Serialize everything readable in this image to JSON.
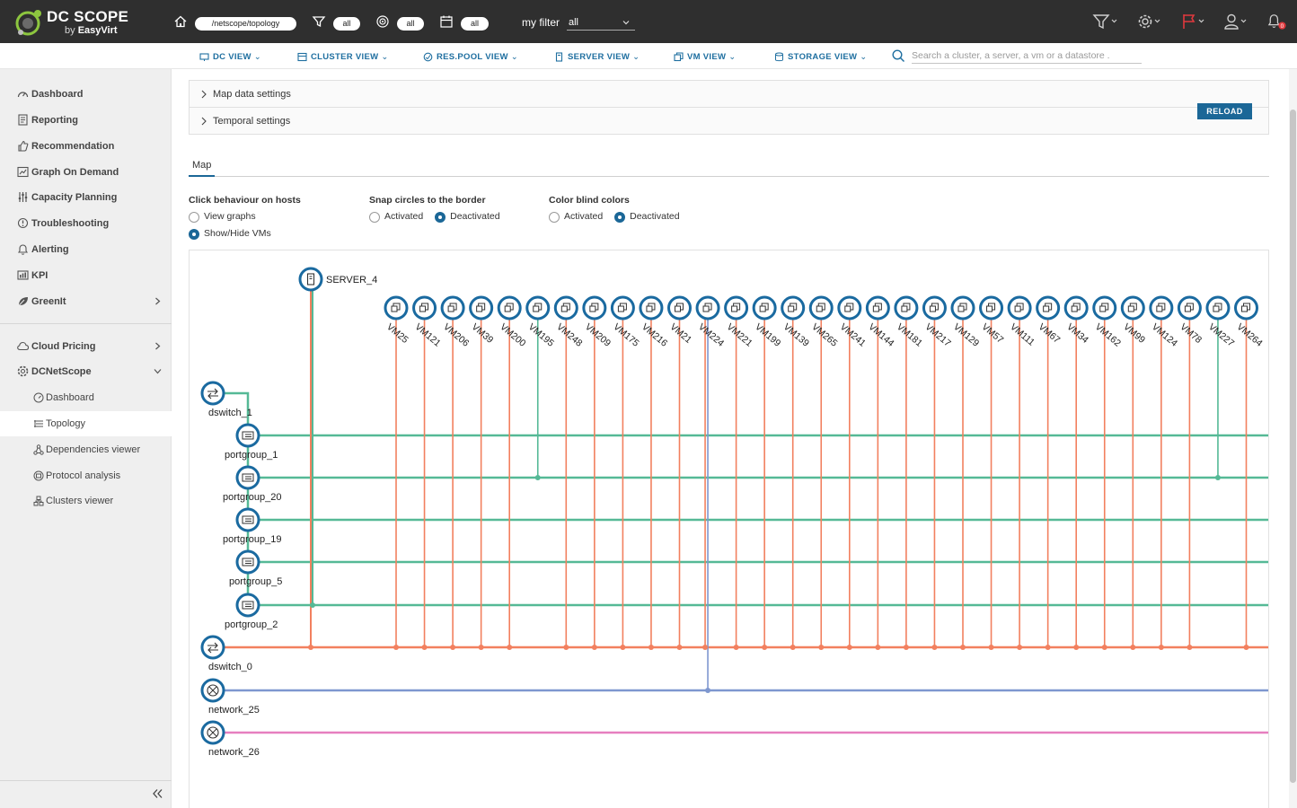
{
  "app": {
    "logo_text": "DC SCOPE",
    "logo_sub_prefix": "by",
    "logo_sub_brand": "EasyVirt"
  },
  "topbar": {
    "breadcrumb": "/netscope/topology",
    "filter_pill": "all",
    "cluster_pill": "all",
    "date_pill": "all",
    "my_filter_label": "my filter",
    "my_filter_value": "all",
    "notification_count": "0",
    "colors": {
      "bg": "#2f2f2f",
      "flag": "#e0393e",
      "badge": "#e0393e"
    }
  },
  "subnav": {
    "items": [
      {
        "label": "DC VIEW",
        "icon": "datacenter-icon"
      },
      {
        "label": "CLUSTER VIEW",
        "icon": "cluster-icon"
      },
      {
        "label": "RES.POOL VIEW",
        "icon": "resource-pool-icon"
      },
      {
        "label": "SERVER VIEW",
        "icon": "server-icon"
      },
      {
        "label": "VM VIEW",
        "icon": "vm-icon"
      },
      {
        "label": "STORAGE VIEW",
        "icon": "storage-icon"
      }
    ],
    "search_placeholder": "Search a cluster, a server, a vm or a datastore ."
  },
  "sidebar": {
    "items": [
      {
        "label": "Dashboard",
        "icon": "dashboard-icon"
      },
      {
        "label": "Reporting",
        "icon": "reporting-icon"
      },
      {
        "label": "Recommendation",
        "icon": "recommendation-icon"
      },
      {
        "label": "Graph On Demand",
        "icon": "graph-icon"
      },
      {
        "label": "Capacity Planning",
        "icon": "capacity-icon"
      },
      {
        "label": "Troubleshooting",
        "icon": "troubleshooting-icon"
      },
      {
        "label": "Alerting",
        "icon": "bell-icon"
      },
      {
        "label": "KPI",
        "icon": "kpi-icon"
      },
      {
        "label": "GreenIt",
        "icon": "leaf-icon"
      }
    ],
    "cloud_pricing": "Cloud Pricing",
    "dcnetscope": "DCNetScope",
    "subitems": [
      {
        "label": "Dashboard",
        "icon": "dashboard-icon"
      },
      {
        "label": "Topology",
        "icon": "topology-icon",
        "active": true
      },
      {
        "label": "Dependencies viewer",
        "icon": "dependencies-icon"
      },
      {
        "label": "Protocol analysis",
        "icon": "protocol-icon"
      },
      {
        "label": "Clusters viewer",
        "icon": "clusters-icon"
      }
    ]
  },
  "main": {
    "accordion": {
      "map_data_settings": "Map data settings",
      "temporal_settings": "Temporal settings",
      "reload_label": "RELOAD"
    },
    "tab_map": "Map",
    "options": {
      "click_behaviour": {
        "title": "Click behaviour on hosts",
        "opt1": "View graphs",
        "opt2": "Show/Hide VMs",
        "selected": "Show/Hide VMs"
      },
      "snap_circles": {
        "title": "Snap circles to the border",
        "opt1": "Activated",
        "opt2": "Deactivated",
        "selected": "Deactivated"
      },
      "color_blind": {
        "title": "Color blind colors",
        "opt1": "Activated",
        "opt2": "Deactivated",
        "selected": "Deactivated"
      }
    }
  },
  "topology": {
    "colors": {
      "node_ring": "#1a6aa0",
      "portgroup_line": "#55b996",
      "dswitch0_line": "#f2805f",
      "network25_line": "#7e97cf",
      "network26_line": "#e67fbf"
    },
    "server": "SERVER_4",
    "vms": [
      "VM25",
      "VM121",
      "VM206",
      "VM39",
      "VM200",
      "VM195",
      "VM248",
      "VM209",
      "VM175",
      "VM216",
      "VM21",
      "VM224",
      "VM221",
      "VM199",
      "VM139",
      "VM265",
      "VM241",
      "VM144",
      "VM181",
      "VM217",
      "VM129",
      "VM57",
      "VM111",
      "VM67",
      "VM34",
      "VM162",
      "VM99",
      "VM124",
      "VM78",
      "VM227",
      "VM264"
    ],
    "left_nodes": [
      {
        "label": "dswitch_1",
        "type": "switch"
      },
      {
        "label": "portgroup_1",
        "type": "portgroup"
      },
      {
        "label": "portgroup_20",
        "type": "portgroup"
      },
      {
        "label": "portgroup_19",
        "type": "portgroup"
      },
      {
        "label": "portgroup_5",
        "type": "portgroup"
      },
      {
        "label": "portgroup_2",
        "type": "portgroup"
      },
      {
        "label": "dswitch_0",
        "type": "switch"
      },
      {
        "label": "network_25",
        "type": "network"
      },
      {
        "label": "network_26",
        "type": "network"
      }
    ],
    "vm_links": {
      "VM195": "portgroup_20",
      "VM227": "portgroup_20",
      "VM224": "network_25"
    }
  }
}
